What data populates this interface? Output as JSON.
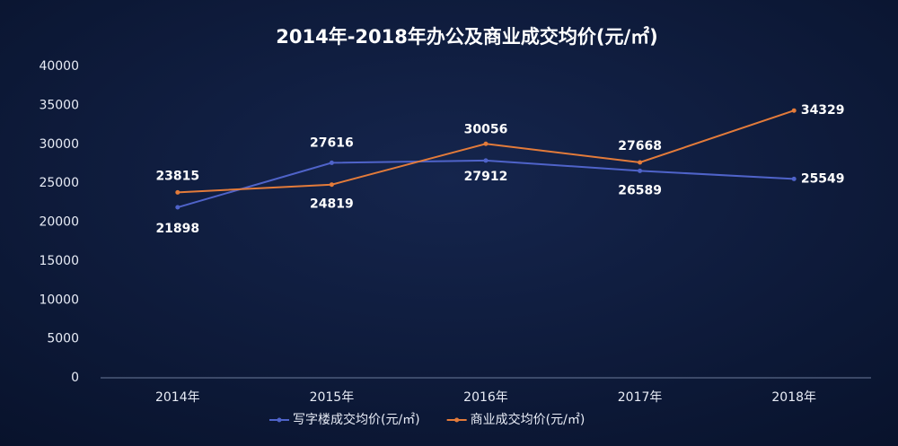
{
  "chart_data": {
    "type": "line",
    "title": "2014年-2018年办公及商业成交均价(元/㎡)",
    "categories": [
      "2014年",
      "2015年",
      "2016年",
      "2017年",
      "2018年"
    ],
    "series": [
      {
        "name": "写字楼成交均价(元/㎡)",
        "color": "#4f63c9",
        "values": [
          21898,
          27616,
          27912,
          26589,
          25549
        ]
      },
      {
        "name": "商业成交均价(元/㎡)",
        "color": "#e37b3a",
        "values": [
          23815,
          24819,
          30056,
          27668,
          34329
        ]
      }
    ],
    "ylim": [
      0,
      40000
    ],
    "yticks": [
      0,
      5000,
      10000,
      15000,
      20000,
      25000,
      30000,
      35000,
      40000
    ],
    "grid": false,
    "legend": "bottom"
  }
}
